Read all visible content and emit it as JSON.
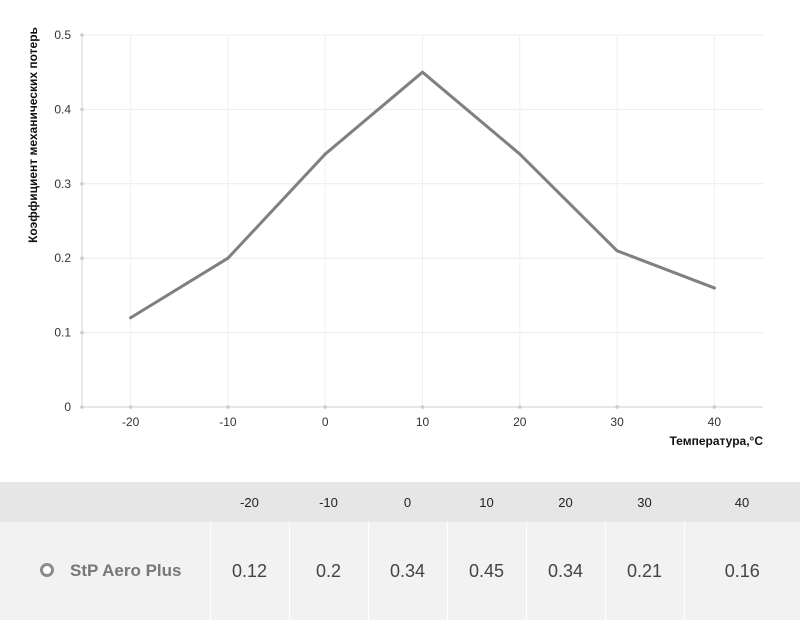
{
  "chart_data": {
    "type": "line",
    "x": [
      -20,
      -10,
      0,
      10,
      20,
      30,
      40
    ],
    "series": [
      {
        "name": "StP Aero Plus",
        "values": [
          0.12,
          0.2,
          0.34,
          0.45,
          0.34,
          0.21,
          0.16
        ]
      }
    ],
    "ylabel": "Коэффициент механических потерь",
    "xlabel": "Температура,°C",
    "ylim": [
      0,
      0.5
    ],
    "yticks": [
      "0",
      "0.1",
      "0.2",
      "0.3",
      "0.4",
      "0.5"
    ],
    "xticks": [
      "-20",
      "-10",
      "0",
      "10",
      "20",
      "30",
      "40"
    ],
    "grid": true,
    "line_color": "#808080"
  },
  "table": {
    "headers": [
      "-20",
      "-10",
      "0",
      "10",
      "20",
      "30",
      "40"
    ],
    "series_name": "StP Aero Plus",
    "values": [
      "0.12",
      "0.2",
      "0.34",
      "0.45",
      "0.34",
      "0.21",
      "0.16"
    ]
  }
}
